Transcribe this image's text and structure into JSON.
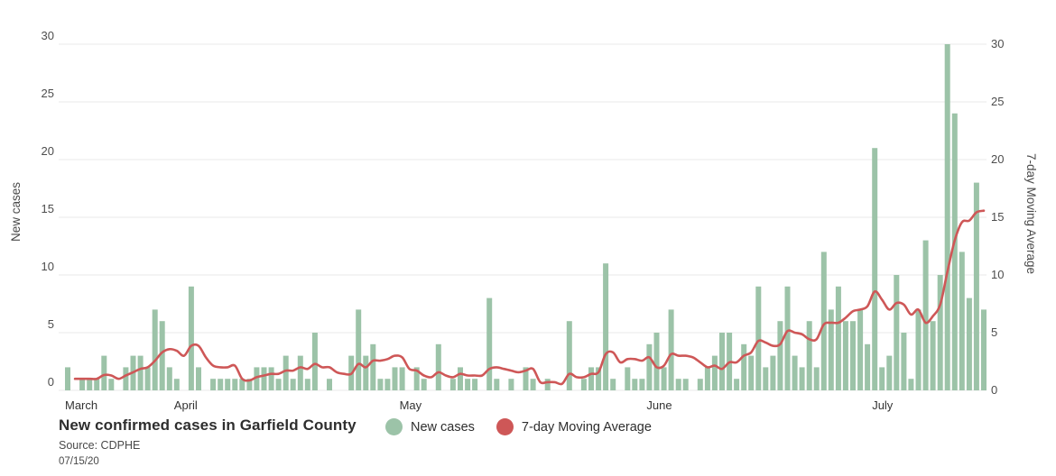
{
  "chart": {
    "title": "New confirmed cases in Garfield County",
    "source": "Source: CDPHE",
    "date_stamp": "07/15/20",
    "left_axis_title": "New cases",
    "right_axis_title": "7-day Moving Average",
    "legend": [
      {
        "label": "New cases",
        "color": "#9cc3a8"
      },
      {
        "label": "7-day Moving Average",
        "color": "#ce5757"
      }
    ]
  },
  "chart_data": {
    "type": "bar",
    "title": "New confirmed cases in Garfield County",
    "xlabel": "",
    "ylabel_left": "New cases",
    "ylabel_right": "7-day Moving Average",
    "ylim": [
      0,
      30
    ],
    "y_ticks": [
      0,
      5,
      10,
      15,
      20,
      25,
      30
    ],
    "grid": "horizontal",
    "legend_position": "bottom",
    "x_month_ticks": [
      {
        "label": "March",
        "index": 0
      },
      {
        "label": "April",
        "index": 15
      },
      {
        "label": "May",
        "index": 46
      },
      {
        "label": "June",
        "index": 80
      },
      {
        "label": "July",
        "index": 111
      }
    ],
    "series": [
      {
        "name": "New cases",
        "type": "bar",
        "color": "#9cc3a8",
        "values": [
          2,
          0,
          1,
          1,
          1,
          3,
          1,
          0,
          2,
          3,
          3,
          2,
          7,
          6,
          2,
          1,
          0,
          9,
          2,
          0,
          1,
          1,
          1,
          1,
          1,
          1,
          2,
          2,
          2,
          1,
          3,
          1,
          3,
          1,
          5,
          0,
          1,
          0,
          0,
          3,
          7,
          3,
          4,
          1,
          1,
          2,
          2,
          0,
          2,
          1,
          0,
          4,
          0,
          1,
          2,
          1,
          1,
          0,
          8,
          1,
          0,
          1,
          0,
          2,
          1,
          0,
          1,
          0,
          0,
          6,
          0,
          1,
          2,
          2,
          11,
          1,
          0,
          2,
          1,
          1,
          4,
          5,
          2,
          7,
          1,
          1,
          0,
          1,
          2,
          3,
          5,
          5,
          1,
          4,
          3,
          9,
          2,
          3,
          6,
          9,
          3,
          2,
          6,
          2,
          12,
          7,
          9,
          6,
          6,
          7,
          4,
          21,
          2,
          3,
          10,
          5,
          1,
          7,
          13,
          6,
          10,
          30,
          24,
          12,
          8,
          18,
          7
        ]
      },
      {
        "name": "7-day Moving Average",
        "type": "line",
        "color": "#ce5757",
        "values": [
          null,
          1,
          1,
          1,
          1,
          1.33,
          1.29,
          1,
          1.29,
          1.57,
          1.86,
          2,
          2.57,
          3.29,
          3.57,
          3.43,
          3,
          3.86,
          3.86,
          2.86,
          2.14,
          2,
          2,
          2.14,
          1,
          0.86,
          1.14,
          1.29,
          1.43,
          1.43,
          1.71,
          1.71,
          2,
          1.86,
          2.29,
          2,
          2,
          1.57,
          1.43,
          1.43,
          2.29,
          2,
          2.57,
          2.57,
          2.71,
          3,
          2.86,
          1.86,
          1.71,
          1.29,
          1.14,
          1.57,
          1.29,
          1.14,
          1.43,
          1.29,
          1.29,
          1.29,
          1.86,
          2,
          1.86,
          1.71,
          1.57,
          1.71,
          1.86,
          0.71,
          0.71,
          0.71,
          0.57,
          1.43,
          1.14,
          1.14,
          1.43,
          1.57,
          3.14,
          3.29,
          2.43,
          2.71,
          2.71,
          2.57,
          2.86,
          2,
          2.14,
          3.14,
          3,
          3,
          2.86,
          2.43,
          2,
          2.14,
          1.86,
          2.43,
          2.43,
          3,
          3.29,
          4.29,
          4.14,
          3.86,
          4,
          5.14,
          5,
          4.86,
          4.43,
          4.43,
          5.71,
          5.86,
          5.86,
          6.29,
          6.86,
          7,
          7.29,
          8.57,
          7.86,
          7,
          7.57,
          7.43,
          6.57,
          7,
          5.86,
          6.43,
          7.43,
          10.29,
          13,
          14.57,
          14.71,
          15.43,
          15.57
        ]
      }
    ]
  }
}
